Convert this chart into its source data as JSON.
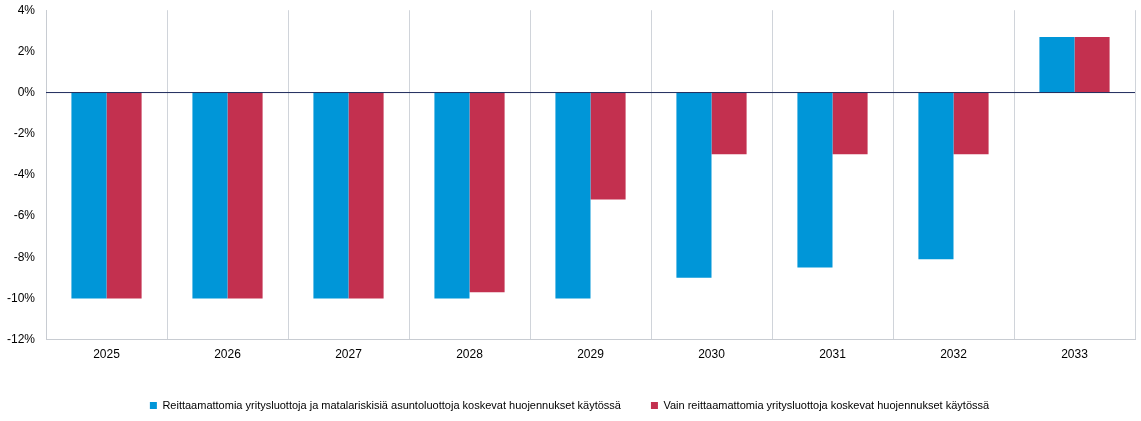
{
  "chart_data": {
    "type": "bar",
    "categories": [
      "2025",
      "2026",
      "2027",
      "2028",
      "2029",
      "2030",
      "2031",
      "2032",
      "2033"
    ],
    "series": [
      {
        "name": "Reittaamattomia yritysluottoja ja matalariskisiä asuntoluottoja koskevat huojennukset käytössä",
        "color": "#0096d8",
        "values": [
          -10,
          -10,
          -10,
          -10,
          -10,
          -9,
          -8.5,
          -8.1,
          2.7
        ]
      },
      {
        "name": "Vain reittaamattomia yritysluottoja koskevat huojennukset käytössä",
        "color": "#c3304f",
        "values": [
          -10,
          -10,
          -10,
          -9.7,
          -5.2,
          -3,
          -3,
          -3,
          2.7
        ]
      }
    ],
    "ylim": [
      -12,
      4
    ],
    "yticks": [
      {
        "value": -12,
        "label": "-12%"
      },
      {
        "value": -10,
        "label": "-10%"
      },
      {
        "value": -8,
        "label": "-8%"
      },
      {
        "value": -6,
        "label": "-6%"
      },
      {
        "value": -4,
        "label": "-4%"
      },
      {
        "value": -2,
        "label": "-2%"
      },
      {
        "value": 0,
        "label": "0%"
      },
      {
        "value": 2,
        "label": "2%"
      },
      {
        "value": 4,
        "label": "4%"
      }
    ],
    "grid": "x",
    "legend": "bottom"
  }
}
